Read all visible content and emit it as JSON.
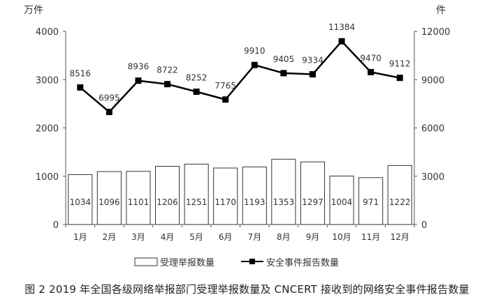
{
  "caption": "图 2 2019 年全国各级网络举报部门受理举报数量及 CNCERT 接收到的网络安全事件报告数量",
  "chart_data": {
    "type": "bar+line",
    "categories": [
      "1月",
      "2月",
      "3月",
      "4月",
      "5月",
      "6月",
      "7月",
      "8月",
      "9月",
      "10月",
      "11月",
      "12月"
    ],
    "left_axis": {
      "unit": "万件",
      "ylim": [
        0,
        4000
      ],
      "ticks": [
        "0",
        "1000",
        "2000",
        "3000",
        "4000"
      ]
    },
    "right_axis": {
      "unit": "件",
      "ylim": [
        0,
        12000
      ],
      "ticks": [
        "0",
        "3000",
        "6000",
        "9000",
        "12000"
      ]
    },
    "series": [
      {
        "name": "受理举报数量",
        "type": "bar",
        "axis": "left",
        "values": [
          1034,
          1096,
          1101,
          1206,
          1251,
          1170,
          1193,
          1353,
          1297,
          1004,
          971,
          1222
        ],
        "color": "#ffffff",
        "stroke": "#333333"
      },
      {
        "name": "安全事件报告数量",
        "type": "line",
        "axis": "right",
        "values": [
          8516,
          6995,
          8936,
          8722,
          8252,
          7765,
          9910,
          9405,
          9334,
          11384,
          9470,
          9112
        ],
        "color": "#000000"
      }
    ],
    "grid": false,
    "legend_position": "bottom"
  }
}
